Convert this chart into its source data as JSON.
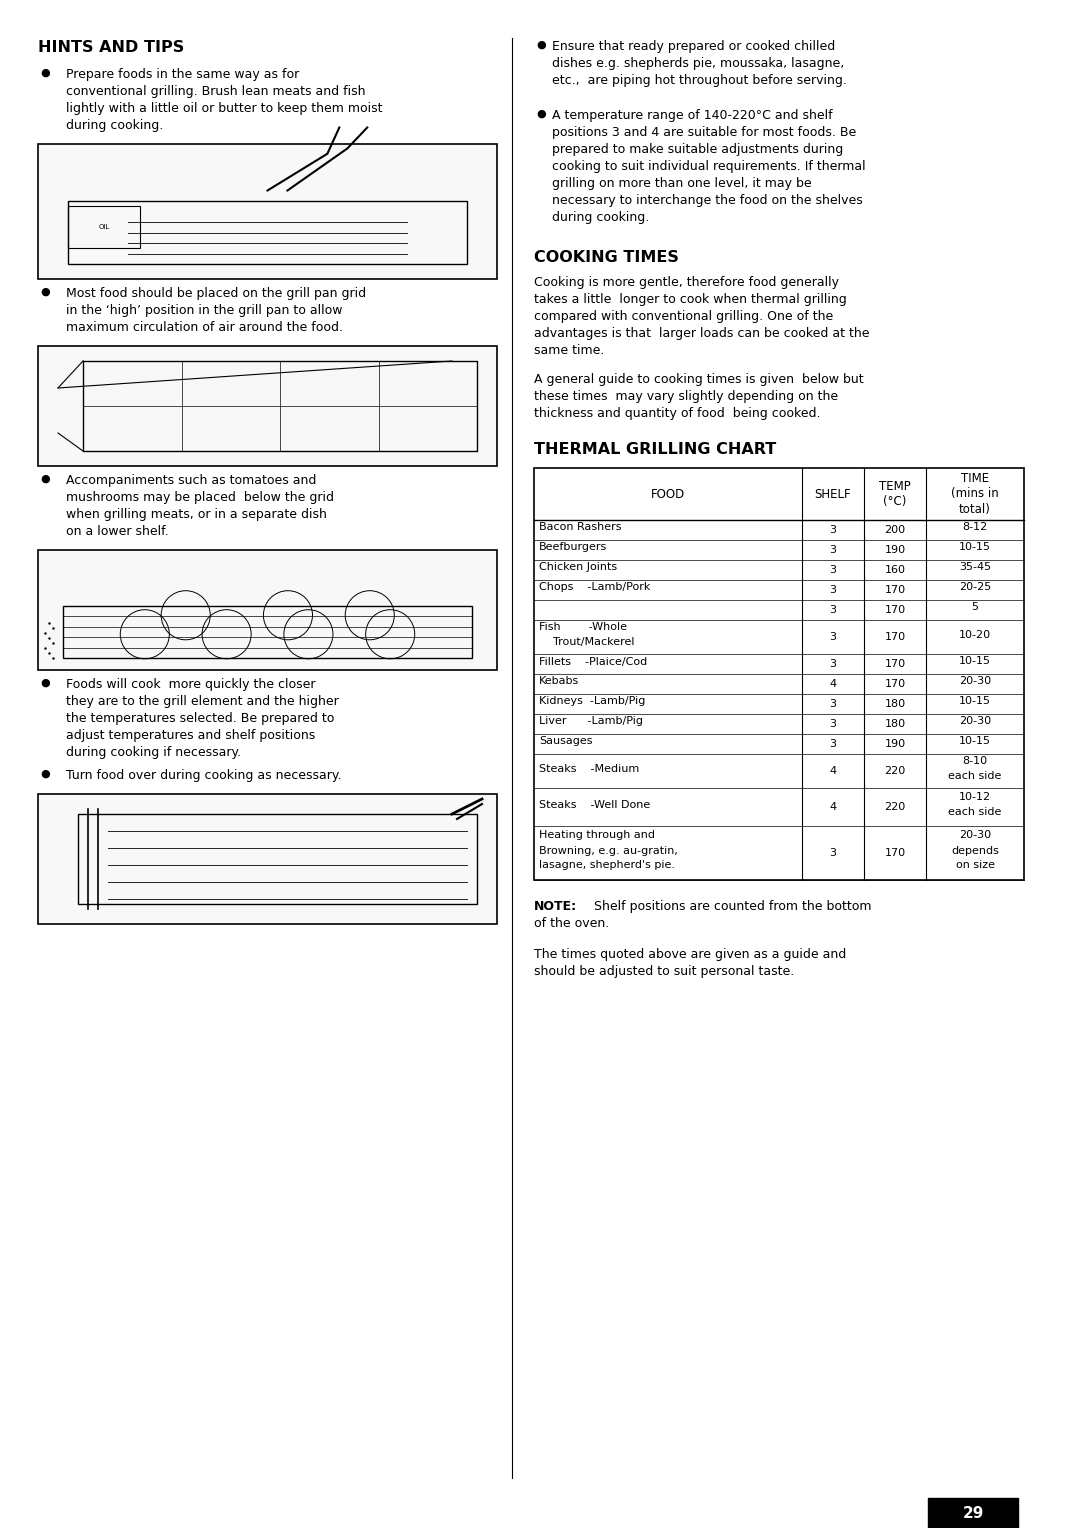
{
  "page_bg": "#ffffff",
  "text_color": "#000000",
  "hints_title": "HINTS AND TIPS",
  "cooking_times_title": "COOKING TIMES",
  "thermal_title": "THERMAL GRILLING CHART",
  "left_bullets": [
    [
      "Prepare foods in the same way as for",
      "conventional grilling. Brush lean meats and fish",
      "lightly with a little oil or butter to keep them moist",
      "during cooking."
    ],
    [
      "Most food should be placed on the grill pan grid",
      "in the ‘high’ position in the grill pan to allow",
      "maximum circulation of air around the food."
    ],
    [
      "Accompaniments such as tomatoes and",
      "mushrooms may be placed  below the grid",
      "when grilling meats, or in a separate dish",
      "on a lower shelf."
    ],
    [
      "Foods will cook  more quickly the closer",
      "they are to the grill element and the higher",
      "the temperatures selected. Be prepared to",
      "adjust temperatures and shelf positions",
      "during cooking if necessary."
    ],
    [
      "Turn food over during cooking as necessary."
    ]
  ],
  "right_bullet1": [
    "Ensure that ready prepared or cooked chilled",
    "dishes e.g. shepherds pie, moussaka, lasagne,",
    "etc.,  are piping hot throughout before serving."
  ],
  "right_bullet2": [
    "A temperature range of 140-220°C and shelf",
    "positions 3 and 4 are suitable for most foods. Be",
    "prepared to make suitable adjustments during",
    "cooking to suit individual requirements. If thermal",
    "grilling on more than one level, it may be",
    "necessary to interchange the food on the shelves",
    "during cooking."
  ],
  "ct1": [
    "Cooking is more gentle, therefore food generally",
    "takes a little  longer to cook when thermal grilling",
    "compared with conventional grilling. One of the",
    "advantages is that  larger loads can be cooked at the",
    "same time."
  ],
  "ct2": [
    "A general guide to cooking times is given  below but",
    "these times  may vary slightly depending on the",
    "thickness and quantity of food  being cooked."
  ],
  "table_headers": [
    "FOOD",
    "SHELF",
    "TEMP\n(°C)",
    "TIME\n(mins in\ntotal)"
  ],
  "table_rows": [
    [
      "Bacon Rashers",
      "3",
      "200",
      "8-12"
    ],
    [
      "Beefburgers",
      "3",
      "190",
      "10-15"
    ],
    [
      "Chicken Joints",
      "3",
      "160",
      "35-45"
    ],
    [
      "Chops    -Lamb/Pork",
      "3",
      "170",
      "20-25"
    ],
    [
      "",
      "3",
      "170",
      "5"
    ],
    [
      "Fish        -Whole\n    Trout/Mackerel",
      "3",
      "170",
      "10-20"
    ],
    [
      "Fillets    -Plaice/Cod",
      "3",
      "170",
      "10-15"
    ],
    [
      "Kebabs",
      "4",
      "170",
      "20-30"
    ],
    [
      "Kidneys  -Lamb/Pig",
      "3",
      "180",
      "10-15"
    ],
    [
      "Liver      -Lamb/Pig",
      "3",
      "180",
      "20-30"
    ],
    [
      "Sausages",
      "3",
      "190",
      "10-15"
    ],
    [
      "Steaks    -Medium",
      "4",
      "220",
      "8-10\neach side"
    ],
    [
      "Steaks    -Well Done",
      "4",
      "220",
      "10-12\neach side"
    ],
    [
      "Heating through and\nBrowning, e.g. au-gratin,\nlasagne, shepherd's pie.",
      "3",
      "170",
      "20-30\ndepends\non size"
    ]
  ],
  "note_bold": "NOTE:",
  "note_rest": "  Shelf positions are counted from the bottom",
  "note_line2": "of the oven.",
  "final_lines": [
    "The times quoted above are given as a guide and",
    "should be adjusted to suit personal taste."
  ],
  "page_number": "29"
}
